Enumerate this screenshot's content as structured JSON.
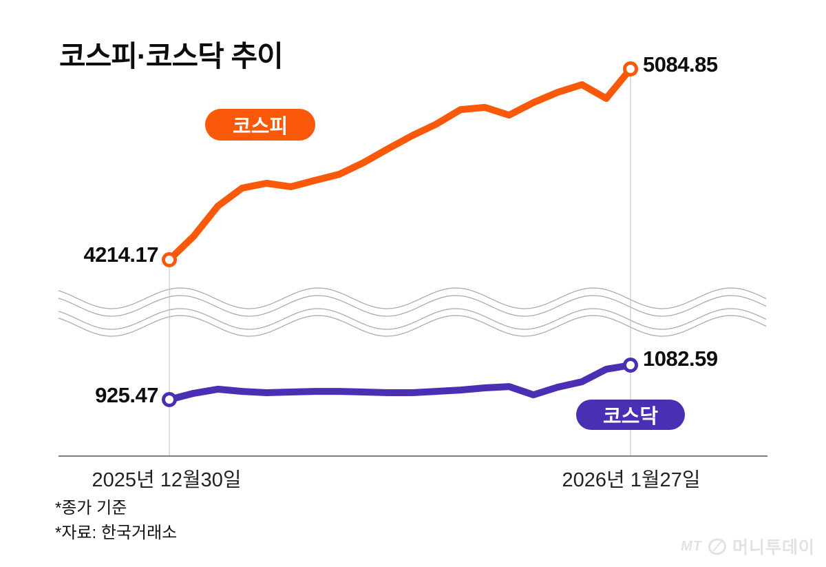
{
  "header": {
    "title": "코스피·코스닥 추이"
  },
  "chart_data": {
    "type": "line",
    "title": "코스피·코스닥 추이",
    "axis_break": true,
    "grid": false,
    "x_axis": {
      "start_label": "2025년 12월30일",
      "end_label": "2026년 1월27일"
    },
    "series": [
      {
        "name": "코스피",
        "color": "#f95908",
        "start_label": "4214.17",
        "end_label": "5084.85",
        "values": [
          4214.17,
          4321,
          4459,
          4541,
          4563,
          4547,
          4576,
          4604,
          4657,
          4720,
          4780,
          4833,
          4899,
          4909,
          4874,
          4931,
          4978,
          5013,
          4950,
          5084.85
        ]
      },
      {
        "name": "코스닥",
        "color": "#4a2fb4",
        "start_label": "925.47",
        "end_label": "1082.59",
        "values": [
          925.47,
          954,
          973,
          963,
          957,
          960,
          963,
          963,
          960,
          957,
          957,
          963,
          969,
          979,
          985,
          947,
          982,
          1007,
          1064,
          1082.59
        ]
      }
    ],
    "notes": [
      "*종가 기준",
      "*자료: 한국거래소"
    ]
  },
  "watermark": {
    "prefix": "MT",
    "name": "머니투데이"
  }
}
